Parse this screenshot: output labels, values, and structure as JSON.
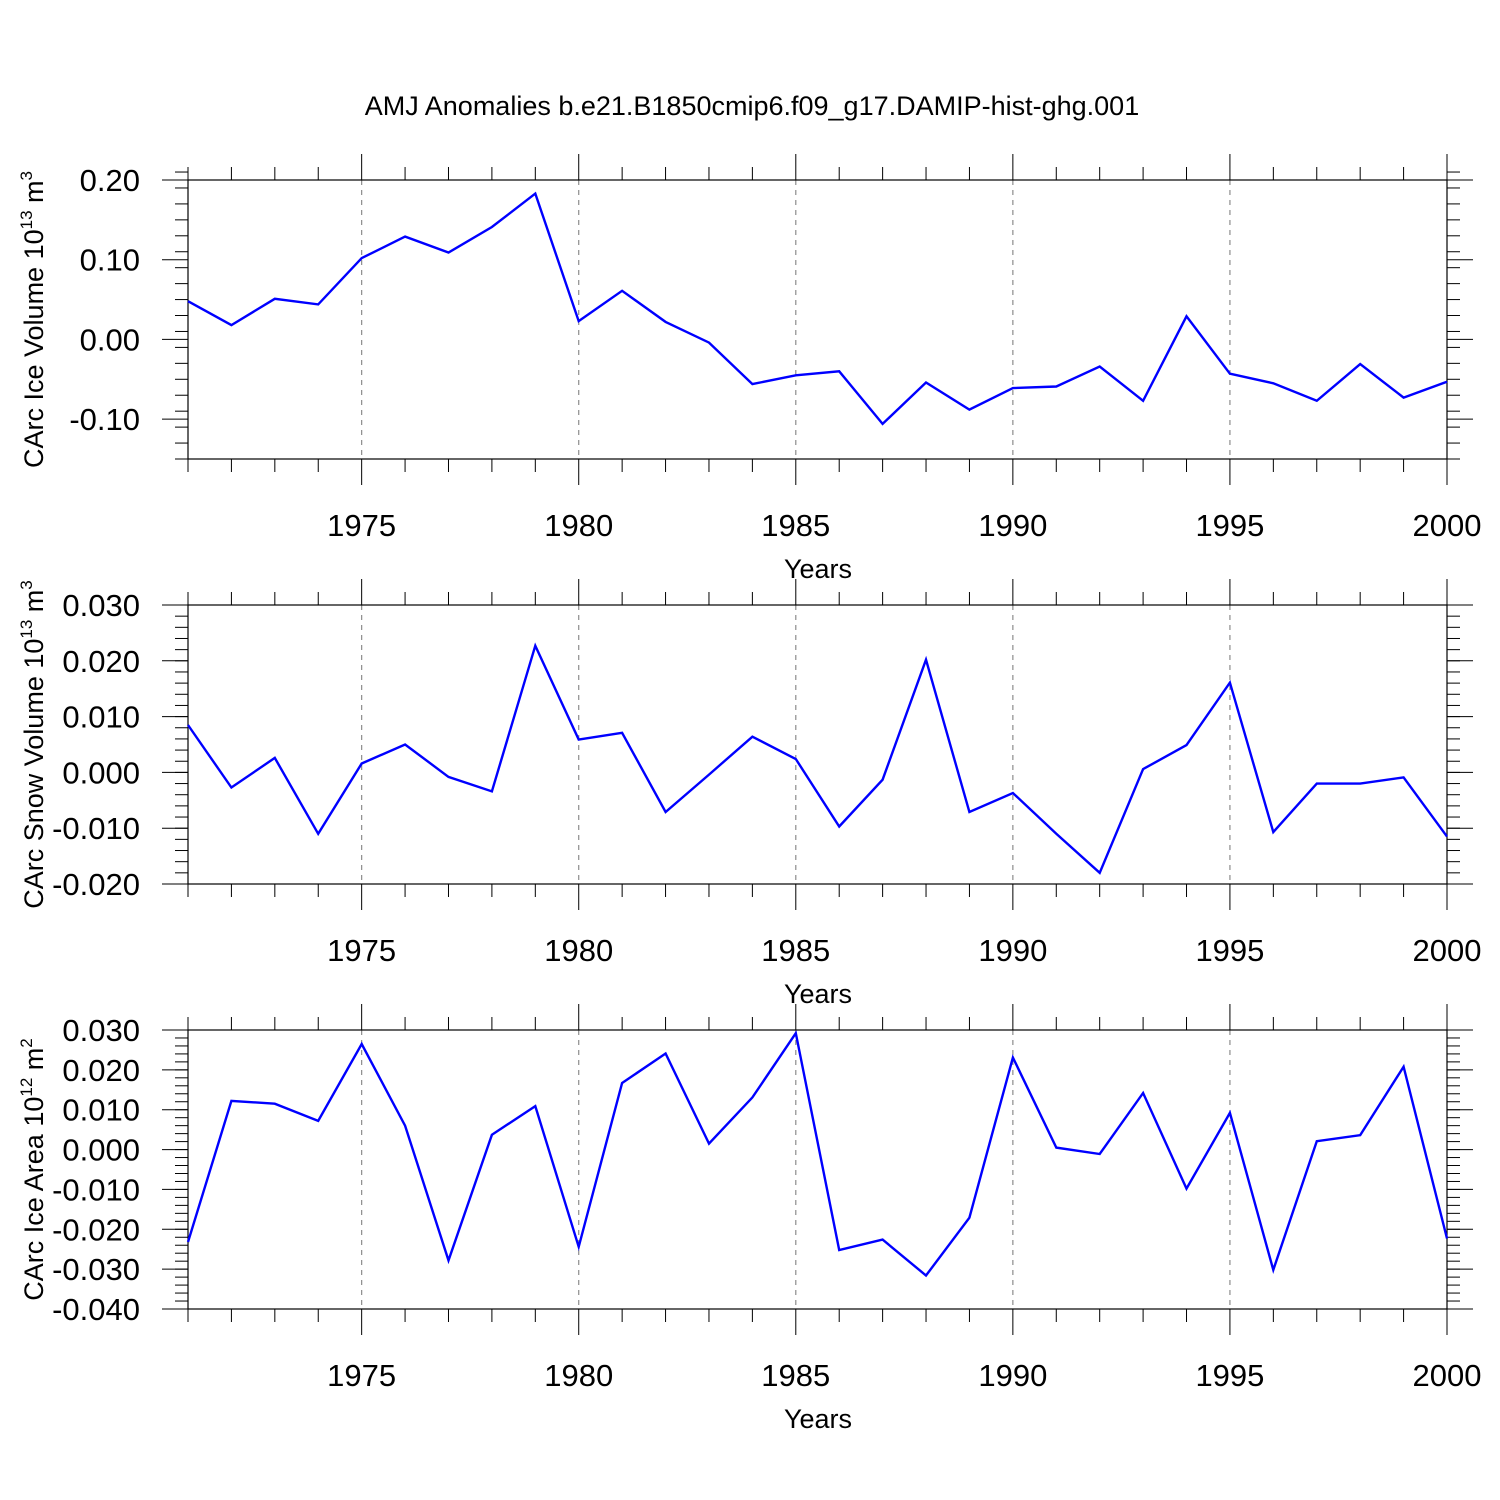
{
  "title": "AMJ Anomalies b.e21.B1850cmip6.f09_g17.DAMIP-hist-ghg.001",
  "chart_data": [
    {
      "type": "line",
      "ylabel": "CArc Ice Volume 10",
      "ylabel_sup": "13",
      "ylabel_unit": "m",
      "ylabel_unit_sup": "3",
      "xlabel": "Years",
      "xlim": [
        1971,
        2000
      ],
      "ylim": [
        -0.15,
        0.2
      ],
      "yticks": [
        -0.1,
        0.0,
        0.1,
        0.2
      ],
      "ytick_labels": [
        "-0.10",
        "0.00",
        "0.10",
        "0.20"
      ],
      "y_minor_step": 0.02,
      "xticks": [
        1975,
        1980,
        1985,
        1990,
        1995,
        2000
      ],
      "xtick_labels": [
        "1975",
        "1980",
        "1985",
        "1990",
        "1995",
        "2000"
      ],
      "vgrid": [
        1975,
        1980,
        1985,
        1990,
        1995
      ],
      "line_color": "#0000ff",
      "x": [
        1971,
        1972,
        1973,
        1974,
        1975,
        1976,
        1977,
        1978,
        1979,
        1980,
        1981,
        1982,
        1983,
        1984,
        1985,
        1986,
        1987,
        1988,
        1989,
        1990,
        1991,
        1992,
        1993,
        1994,
        1995,
        1996,
        1997,
        1998,
        1999,
        2000
      ],
      "y": [
        0.048,
        0.018,
        0.051,
        0.044,
        0.102,
        0.129,
        0.109,
        0.141,
        0.183,
        0.023,
        0.061,
        0.022,
        -0.004,
        -0.056,
        -0.045,
        -0.04,
        -0.106,
        -0.054,
        -0.088,
        -0.061,
        -0.059,
        -0.034,
        -0.077,
        0.029,
        -0.043,
        -0.055,
        -0.077,
        -0.031,
        -0.073,
        -0.053
      ]
    },
    {
      "type": "line",
      "ylabel": "CArc Snow Volume 10",
      "ylabel_sup": "13",
      "ylabel_unit": "m",
      "ylabel_unit_sup": "3",
      "xlabel": "Years",
      "xlim": [
        1971,
        2000
      ],
      "ylim": [
        -0.02,
        0.03
      ],
      "yticks": [
        -0.02,
        -0.01,
        0.0,
        0.01,
        0.02,
        0.03
      ],
      "ytick_labels": [
        "-0.020",
        "-0.010",
        "0.000",
        "0.010",
        "0.020",
        "0.030"
      ],
      "y_minor_step": 0.002,
      "xticks": [
        1975,
        1980,
        1985,
        1990,
        1995,
        2000
      ],
      "xtick_labels": [
        "1975",
        "1980",
        "1985",
        "1990",
        "1995",
        "2000"
      ],
      "vgrid": [
        1975,
        1980,
        1985,
        1990,
        1995
      ],
      "line_color": "#0000ff",
      "x": [
        1971,
        1972,
        1973,
        1974,
        1975,
        1976,
        1977,
        1978,
        1979,
        1980,
        1981,
        1982,
        1983,
        1984,
        1985,
        1986,
        1987,
        1988,
        1989,
        1990,
        1991,
        1992,
        1993,
        1994,
        1995,
        1996,
        1997,
        1998,
        1999,
        2000
      ],
      "y": [
        0.0085,
        -0.0027,
        0.0026,
        -0.011,
        0.0016,
        0.005,
        -0.0008,
        -0.0034,
        0.0227,
        0.0059,
        0.0071,
        -0.0071,
        -0.0004,
        0.0064,
        0.0024,
        -0.0097,
        -0.0013,
        0.0202,
        -0.0071,
        -0.0037,
        -0.011,
        -0.018,
        0.0006,
        0.0049,
        0.0161,
        -0.0107,
        -0.002,
        -0.002,
        -0.0009,
        -0.0115
      ]
    },
    {
      "type": "line",
      "ylabel": "CArc Ice Area 10",
      "ylabel_sup": "12",
      "ylabel_unit": "m",
      "ylabel_unit_sup": "2",
      "xlabel": "Years",
      "xlim": [
        1971,
        2000
      ],
      "ylim": [
        -0.04,
        0.03
      ],
      "yticks": [
        -0.04,
        -0.03,
        -0.02,
        -0.01,
        0.0,
        0.01,
        0.02,
        0.03
      ],
      "ytick_labels": [
        "-0.040",
        "-0.030",
        "-0.020",
        "-0.010",
        "0.000",
        "0.010",
        "0.020",
        "0.030"
      ],
      "y_minor_step": 0.002,
      "xticks": [
        1975,
        1980,
        1985,
        1990,
        1995,
        2000
      ],
      "xtick_labels": [
        "1975",
        "1980",
        "1985",
        "1990",
        "1995",
        "2000"
      ],
      "vgrid": [
        1975,
        1980,
        1985,
        1990,
        1995
      ],
      "line_color": "#0000ff",
      "x": [
        1971,
        1972,
        1973,
        1974,
        1975,
        1976,
        1977,
        1978,
        1979,
        1980,
        1981,
        1982,
        1983,
        1984,
        1985,
        1986,
        1987,
        1988,
        1989,
        1990,
        1991,
        1992,
        1993,
        1994,
        1995,
        1996,
        1997,
        1998,
        1999,
        2000
      ],
      "y": [
        -0.0232,
        0.0122,
        0.0115,
        0.0072,
        0.0265,
        0.006,
        -0.0278,
        0.0037,
        0.0109,
        -0.0244,
        0.0167,
        0.0241,
        0.0015,
        0.0131,
        0.0292,
        -0.0252,
        -0.0226,
        -0.0316,
        -0.0171,
        0.0231,
        0.0005,
        -0.0011,
        0.0142,
        -0.0098,
        0.0092,
        -0.0302,
        0.0021,
        0.0036,
        0.0208,
        -0.0223
      ]
    }
  ]
}
